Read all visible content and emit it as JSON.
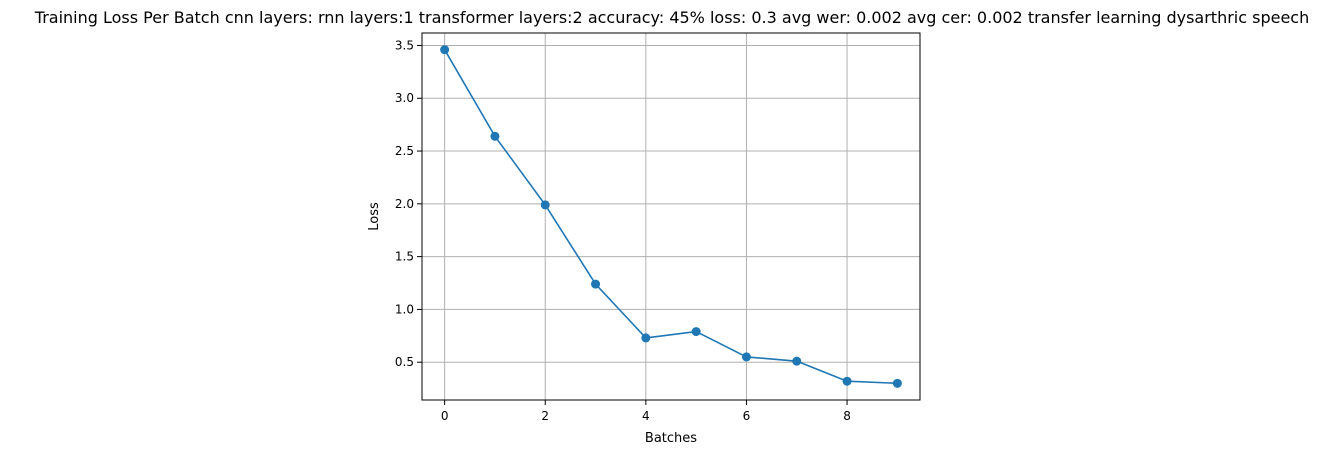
{
  "chart_data": {
    "type": "line",
    "title": "Training Loss Per Batch cnn layers: rnn layers:1 transformer layers:2 accuracy: 45% loss: 0.3 avg wer: 0.002 avg cer: 0.002 transfer learning dysarthric speech",
    "xlabel": "Batches",
    "ylabel": "Loss",
    "x": [
      0,
      1,
      2,
      3,
      4,
      5,
      6,
      7,
      8,
      9
    ],
    "series": [
      {
        "values": [
          3.46,
          2.64,
          1.99,
          1.24,
          0.73,
          0.79,
          0.55,
          0.51,
          0.32,
          0.3
        ],
        "color": "#1f77b4",
        "marker": "circle"
      }
    ],
    "xlim": [
      -0.45,
      9.45
    ],
    "ylim": [
      0.142,
      3.618
    ],
    "xticks": [
      0,
      2,
      4,
      6,
      8
    ],
    "yticks": [
      0.5,
      1.0,
      1.5,
      2.0,
      2.5,
      3.0,
      3.5
    ],
    "ytick_labels": [
      "0.5",
      "1.0",
      "1.5",
      "2.0",
      "2.5",
      "3.0",
      "3.5"
    ],
    "grid": true,
    "grid_color": "#b0b0b0",
    "legend": "none"
  }
}
